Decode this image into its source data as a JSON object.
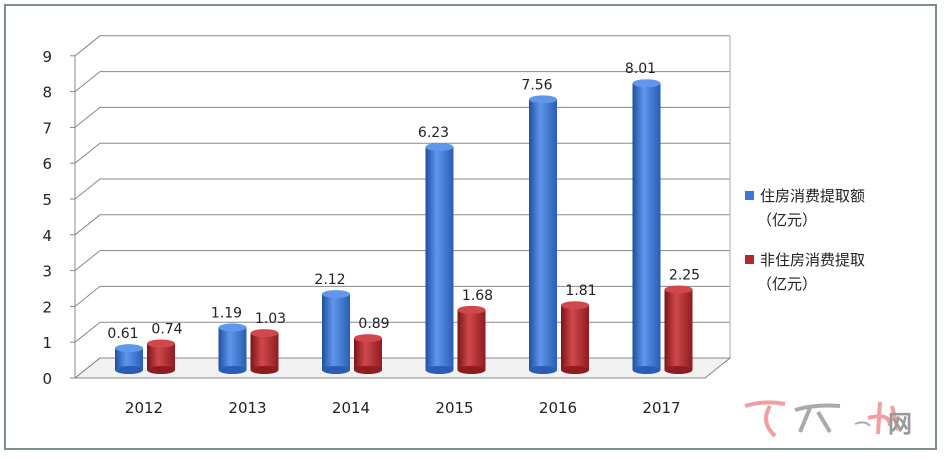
{
  "chart_data": {
    "type": "bar",
    "categories": [
      "2012",
      "2013",
      "2014",
      "2015",
      "2016",
      "2017"
    ],
    "series": [
      {
        "name": "住房消费提取额",
        "unit": "（亿元）",
        "color": "#3c78d8",
        "values": [
          0.61,
          1.19,
          2.12,
          6.23,
          7.56,
          8.01
        ]
      },
      {
        "name": "非住房消费提取",
        "unit": "（亿元）",
        "color": "#b3282d",
        "values": [
          0.74,
          1.03,
          0.89,
          1.68,
          1.81,
          2.25
        ]
      }
    ],
    "data_labels": [
      [
        "0.61",
        "1.19",
        "2.12",
        "6.23",
        "7.56",
        "8.01"
      ],
      [
        "0.74",
        "1.03",
        "0.89",
        "1.68",
        "1.81",
        "2.25"
      ]
    ],
    "yticks": [
      "0",
      "1",
      "2",
      "3",
      "4",
      "5",
      "6",
      "7",
      "8",
      "9"
    ],
    "ylim": [
      0,
      9
    ],
    "grid": true,
    "style": "3d-cylinder",
    "legend_position": "right"
  },
  "watermark": "网"
}
